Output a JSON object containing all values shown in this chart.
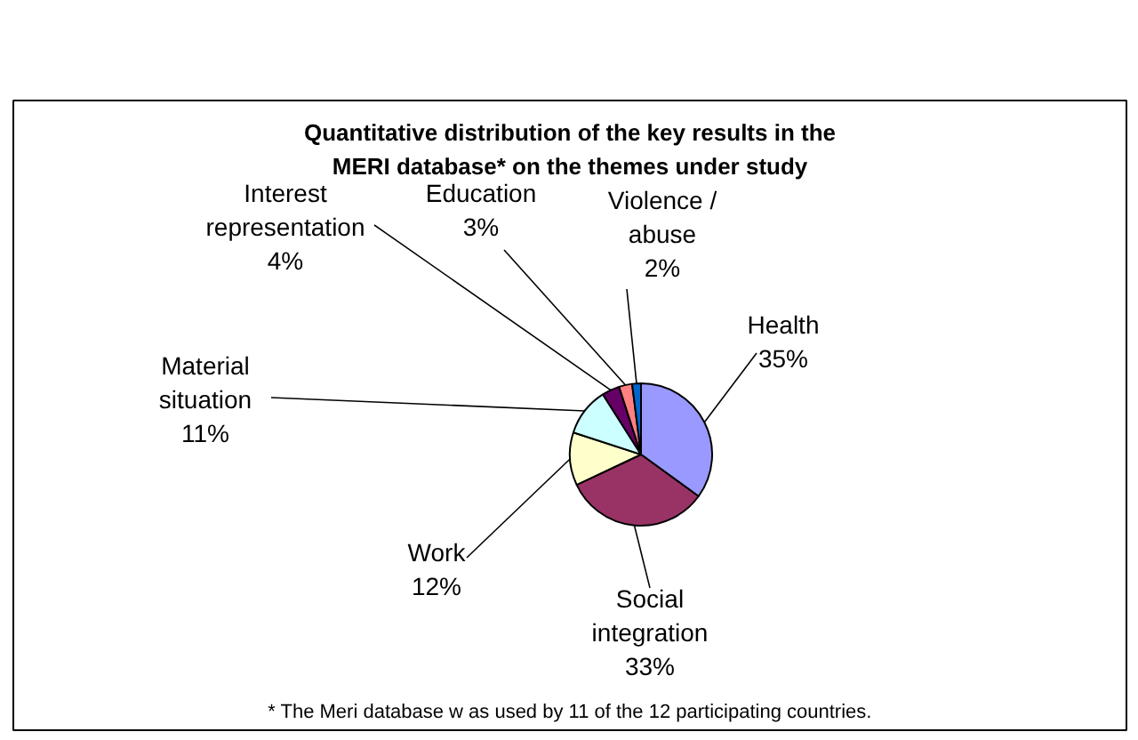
{
  "chart_data": {
    "type": "pie",
    "title": "Quantitative distribution of the key results in the MERI database* on the themes under study",
    "categories": [
      "Health",
      "Social integration",
      "Work",
      "Material situation",
      "Interest representation",
      "Education",
      "Violence / abuse"
    ],
    "values": [
      35,
      33,
      12,
      11,
      4,
      3,
      2
    ],
    "value_labels": [
      "35%",
      "33%",
      "12%",
      "11%",
      "4%",
      "3%",
      "2%"
    ],
    "colors": [
      "#9999ff",
      "#993366",
      "#ffffcc",
      "#ccffff",
      "#660066",
      "#ff8080",
      "#0066cc"
    ],
    "annotations": [
      "* The Meri database w as used by 11 of the 12 participating countries."
    ]
  }
}
